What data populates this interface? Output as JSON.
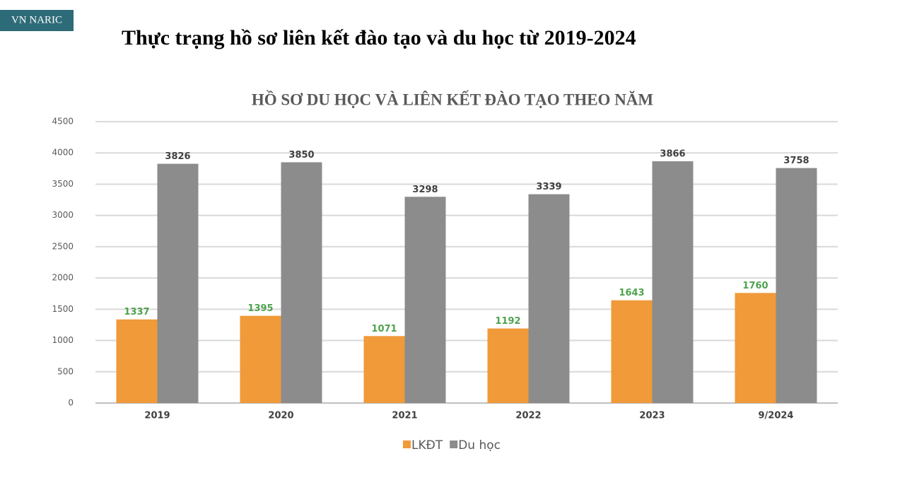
{
  "badge": "VN NARIC",
  "heading": "Thực trạng hồ sơ liên kết đào tạo và du học từ 2019-2024",
  "chart_data": {
    "type": "bar",
    "title": "HỒ SƠ DU HỌC VÀ LIÊN KẾT ĐÀO TẠO THEO NĂM",
    "categories": [
      "2019",
      "2020",
      "2021",
      "2022",
      "2023",
      "9/2024"
    ],
    "series": [
      {
        "name": "LKĐT",
        "color": "#f09a3a",
        "label_color": "#4ea24e",
        "values": [
          1337,
          1395,
          1071,
          1192,
          1643,
          1760
        ]
      },
      {
        "name": "Du học",
        "color": "#8c8c8c",
        "label_color": "#404040",
        "values": [
          3826,
          3850,
          3298,
          3339,
          3866,
          3758
        ]
      }
    ],
    "ylim": [
      0,
      4500
    ],
    "yticks": [
      0,
      500,
      1000,
      1500,
      2000,
      2500,
      3000,
      3500,
      4000,
      4500
    ],
    "grid": true,
    "legend": "bottom"
  }
}
